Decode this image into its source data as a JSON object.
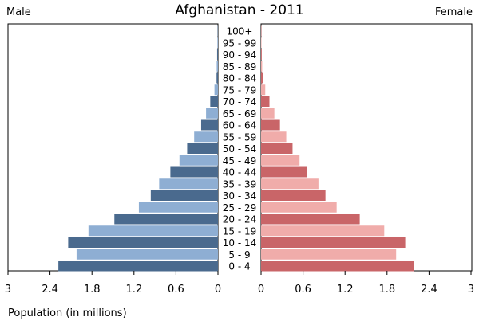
{
  "chart_data": {
    "type": "bar",
    "title": "Afghanistan - 2011",
    "left_label": "Male",
    "right_label": "Female",
    "xlabel": "Population (in millions)",
    "xlim": [
      0,
      3
    ],
    "x_ticks": [
      "3",
      "2.4",
      "1.8",
      "1.2",
      "0.6",
      "0",
      "0",
      "0.6",
      "1.2",
      "1.8",
      "2.4",
      "3"
    ],
    "categories": [
      "100+",
      "95 - 99",
      "90 - 94",
      "85 - 89",
      "80 - 84",
      "75 - 79",
      "70 - 74",
      "65 - 69",
      "60 - 64",
      "55 - 59",
      "50 - 54",
      "45 - 49",
      "40 - 44",
      "35 - 39",
      "30 - 34",
      "25 - 29",
      "20 - 24",
      "15 - 19",
      "10 - 14",
      "5 - 9",
      "0 - 4"
    ],
    "series": [
      {
        "name": "Male",
        "color_dark": "#4a6a8e",
        "color_light": "#8eaed3",
        "values": [
          0.005,
          0.008,
          0.012,
          0.018,
          0.02,
          0.05,
          0.11,
          0.17,
          0.24,
          0.34,
          0.44,
          0.55,
          0.68,
          0.84,
          0.96,
          1.13,
          1.48,
          1.85,
          2.14,
          2.02,
          2.28
        ]
      },
      {
        "name": "Female",
        "color_dark": "#c96568",
        "color_light": "#f0acaa",
        "values": [
          0.005,
          0.006,
          0.01,
          0.016,
          0.03,
          0.06,
          0.12,
          0.19,
          0.27,
          0.36,
          0.45,
          0.55,
          0.66,
          0.82,
          0.92,
          1.08,
          1.41,
          1.76,
          2.06,
          1.93,
          2.19
        ]
      }
    ]
  }
}
